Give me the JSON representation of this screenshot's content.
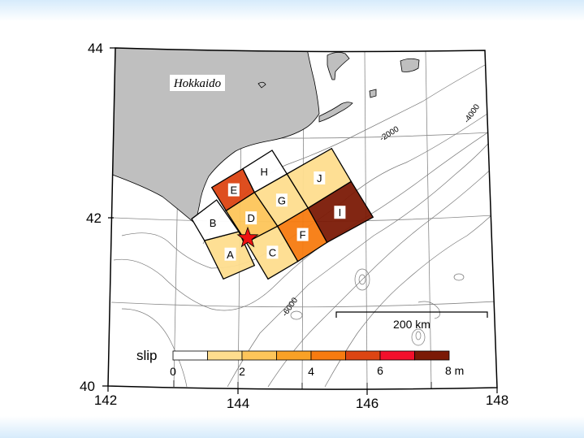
{
  "map": {
    "place_label": "Hokkaido",
    "lat_ticks": [
      "44",
      "42",
      "40"
    ],
    "lon_ticks": [
      "142",
      "144",
      "146",
      "148"
    ],
    "contour_labels": [
      "-2000",
      "-4000",
      "-6000"
    ],
    "scale_bar_label": "200 km",
    "land_color": "#bfbfbf",
    "epicenter_color": "#ee1111"
  },
  "subfaults": [
    {
      "id": "A",
      "slip_m": 1.5
    },
    {
      "id": "B",
      "slip_m": 0.5
    },
    {
      "id": "C",
      "slip_m": 1.5
    },
    {
      "id": "D",
      "slip_m": 2.5
    },
    {
      "id": "E",
      "slip_m": 5.5
    },
    {
      "id": "F",
      "slip_m": 4.5
    },
    {
      "id": "G",
      "slip_m": 1.5
    },
    {
      "id": "H",
      "slip_m": 0.5
    },
    {
      "id": "I",
      "slip_m": 7.5
    },
    {
      "id": "J",
      "slip_m": 1.5
    }
  ],
  "legend": {
    "title": "slip",
    "ticks": [
      "0",
      "2",
      "4",
      "6",
      "8 m"
    ],
    "bins": [
      0,
      1,
      2,
      3,
      4,
      5,
      6,
      7,
      8
    ],
    "colors": [
      "#ffffff",
      "#fedd8e",
      "#fdc55a",
      "#f9a126",
      "#f77b10",
      "#dc4513",
      "#f3102c",
      "#7b1a06"
    ]
  }
}
